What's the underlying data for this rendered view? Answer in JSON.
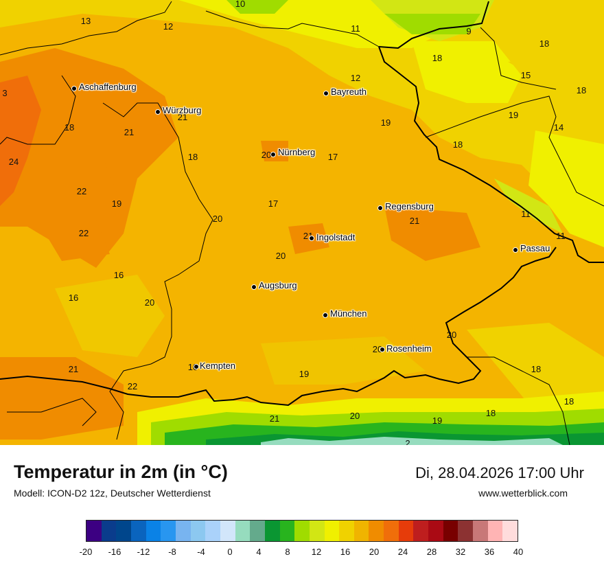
{
  "header": {
    "title": "Temperatur in 2m (in °C)",
    "model": "Modell: ICON-D2 12z, Deutscher Wetterdienst",
    "datetime": "Di, 28.04.2026 17:00 Uhr",
    "site": "www.wetterblick.com"
  },
  "cities": [
    {
      "name": "Aschaffenburg",
      "key": "aschaffenburg"
    },
    {
      "name": "Würzburg",
      "key": "wuerzburg"
    },
    {
      "name": "Bayreuth",
      "key": "bayreuth"
    },
    {
      "name": "Nürnberg",
      "key": "nuernberg"
    },
    {
      "name": "Regensburg",
      "key": "regensburg"
    },
    {
      "name": "Ingolstadt",
      "key": "ingolstadt"
    },
    {
      "name": "Passau",
      "key": "passau"
    },
    {
      "name": "Augsburg",
      "key": "augsburg"
    },
    {
      "name": "München",
      "key": "muenchen"
    },
    {
      "name": "Rosenheim",
      "key": "rosenheim"
    },
    {
      "name": "Kempten",
      "key": "kempten"
    }
  ],
  "temperatures": [
    "10",
    "13",
    "12",
    "11",
    "9",
    "18",
    "18",
    "12",
    "15",
    "18",
    "3",
    "19",
    "19",
    "14",
    "18",
    "21",
    "21",
    "18",
    "24",
    "20",
    "17",
    "18",
    "22",
    "19",
    "17",
    "20",
    "11",
    "21",
    "22",
    "11",
    "21",
    "20",
    "16",
    "16",
    "20",
    "20",
    "18",
    "21",
    "19",
    "22",
    "18",
    "21",
    "20",
    "19",
    "18",
    "2",
    "10",
    "20"
  ],
  "legend": {
    "colors": [
      "#3c0082",
      "#0a3c8c",
      "#00468c",
      "#0a64be",
      "#0a82e6",
      "#2896f0",
      "#78b4f0",
      "#8cc8f0",
      "#aad2fa",
      "#d2e6fa",
      "#96dcbe",
      "#64aa8c",
      "#0a9632",
      "#28b41e",
      "#a0dc00",
      "#d2e614",
      "#f0f000",
      "#f0d200",
      "#f0b400",
      "#f08c00",
      "#f06e0a",
      "#e63c0a",
      "#be1e1e",
      "#aa0a14",
      "#780000",
      "#8c3232",
      "#c87878",
      "#ffb4b4",
      "#ffdcdc"
    ],
    "ticks": [
      "-20",
      "-16",
      "-12",
      "-8",
      "-4",
      "0",
      "4",
      "8",
      "12",
      "16",
      "20",
      "24",
      "28",
      "32",
      "36",
      "40"
    ]
  }
}
